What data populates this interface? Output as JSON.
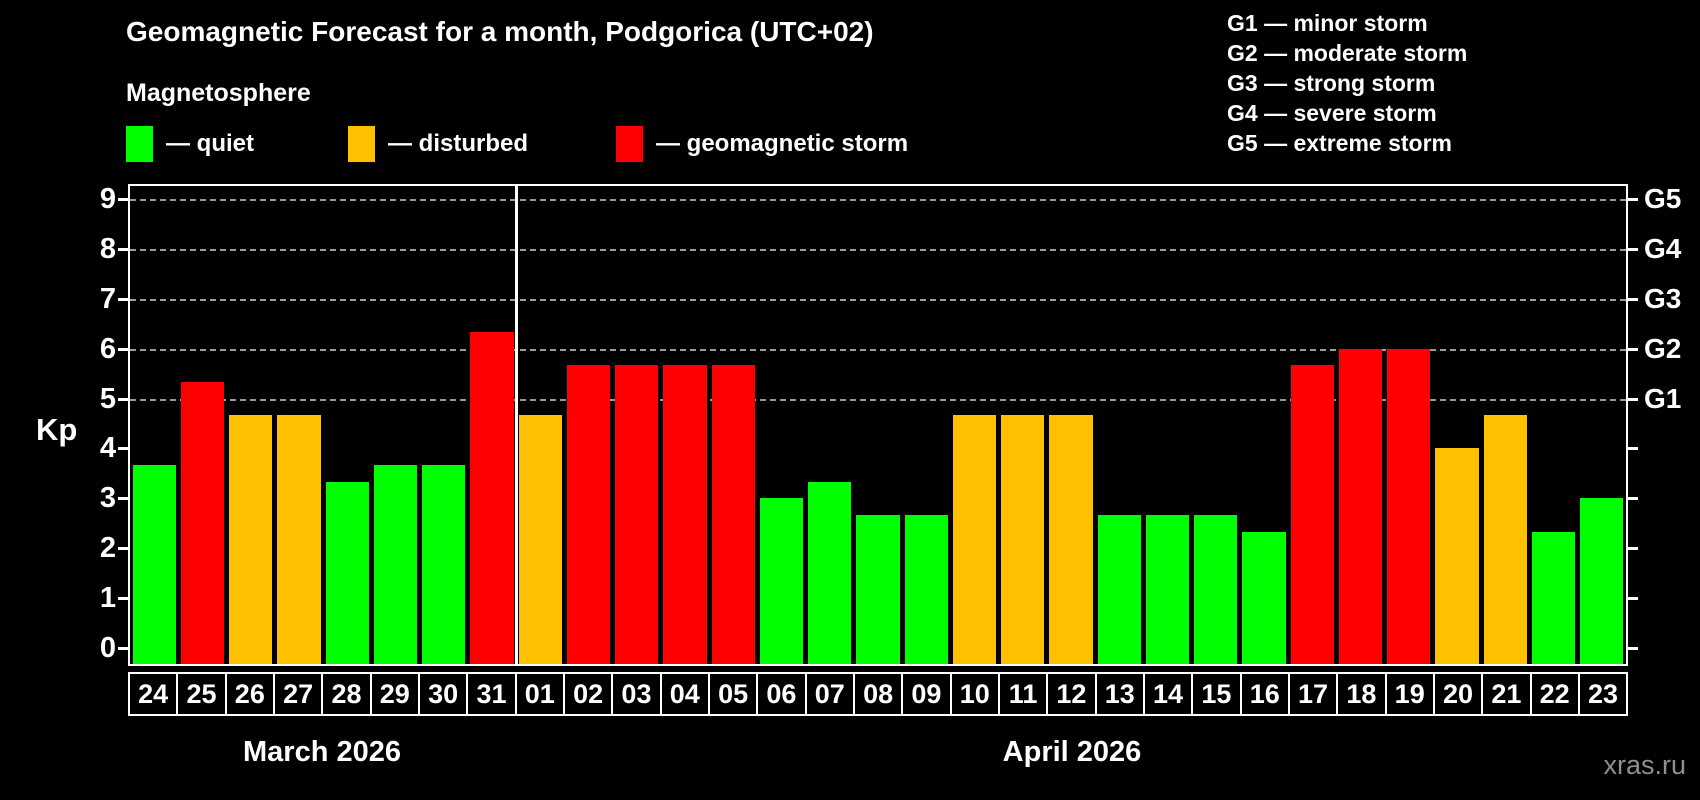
{
  "header": {
    "title": "Geomagnetic Forecast for a month, Podgorica (UTC+02)",
    "subtitle": "Magnetosphere",
    "legend": [
      {
        "key": "quiet",
        "label": "— quiet"
      },
      {
        "key": "disturbed",
        "label": "— disturbed"
      },
      {
        "key": "storm",
        "label": "— geomagnetic storm"
      }
    ],
    "g_scale": [
      {
        "text": "G1 — minor storm"
      },
      {
        "text": "G2 — moderate storm"
      },
      {
        "text": "G3 — strong storm"
      },
      {
        "text": "G4 — severe storm"
      },
      {
        "text": "G5 — extreme storm"
      }
    ]
  },
  "chart_data": {
    "type": "bar",
    "title": "Geomagnetic Forecast for a month, Podgorica (UTC+02)",
    "ylabel": "Kp",
    "ylim": [
      0,
      9
    ],
    "yticks_left": [
      "0",
      "1",
      "2",
      "3",
      "4",
      "5",
      "6",
      "7",
      "8",
      "9"
    ],
    "right_axis_labels": [
      {
        "value": 5,
        "label": "G1"
      },
      {
        "value": 6,
        "label": "G2"
      },
      {
        "value": 7,
        "label": "G3"
      },
      {
        "value": 8,
        "label": "G4"
      },
      {
        "value": 9,
        "label": "G5"
      }
    ],
    "gridlines_at": [
      5,
      6,
      7,
      8,
      9
    ],
    "grid_style": "dashed horizontal gray lines at storm levels only",
    "legend_position": "top-left above plot",
    "months": [
      {
        "label": "March 2026",
        "days": 8
      },
      {
        "label": "April 2026",
        "days": 23
      }
    ],
    "status_colors": {
      "quiet": "#00ff00",
      "disturbed": "#ffc000",
      "storm": "#ff0000"
    },
    "bars": [
      {
        "date": "24",
        "kp": 3.67,
        "status": "quiet"
      },
      {
        "date": "25",
        "kp": 5.33,
        "status": "storm"
      },
      {
        "date": "26",
        "kp": 4.67,
        "status": "disturbed"
      },
      {
        "date": "27",
        "kp": 4.67,
        "status": "disturbed"
      },
      {
        "date": "28",
        "kp": 3.33,
        "status": "quiet"
      },
      {
        "date": "29",
        "kp": 3.67,
        "status": "quiet"
      },
      {
        "date": "30",
        "kp": 3.67,
        "status": "quiet"
      },
      {
        "date": "31",
        "kp": 6.33,
        "status": "storm"
      },
      {
        "date": "01",
        "kp": 4.67,
        "status": "disturbed"
      },
      {
        "date": "02",
        "kp": 5.67,
        "status": "storm"
      },
      {
        "date": "03",
        "kp": 5.67,
        "status": "storm"
      },
      {
        "date": "04",
        "kp": 5.67,
        "status": "storm"
      },
      {
        "date": "05",
        "kp": 5.67,
        "status": "storm"
      },
      {
        "date": "06",
        "kp": 3.0,
        "status": "quiet"
      },
      {
        "date": "07",
        "kp": 3.33,
        "status": "quiet"
      },
      {
        "date": "08",
        "kp": 2.67,
        "status": "quiet"
      },
      {
        "date": "09",
        "kp": 2.67,
        "status": "quiet"
      },
      {
        "date": "10",
        "kp": 4.67,
        "status": "disturbed"
      },
      {
        "date": "11",
        "kp": 4.67,
        "status": "disturbed"
      },
      {
        "date": "12",
        "kp": 4.67,
        "status": "disturbed"
      },
      {
        "date": "13",
        "kp": 2.67,
        "status": "quiet"
      },
      {
        "date": "14",
        "kp": 2.67,
        "status": "quiet"
      },
      {
        "date": "15",
        "kp": 2.67,
        "status": "quiet"
      },
      {
        "date": "16",
        "kp": 2.33,
        "status": "quiet"
      },
      {
        "date": "17",
        "kp": 5.67,
        "status": "storm"
      },
      {
        "date": "18",
        "kp": 6.0,
        "status": "storm"
      },
      {
        "date": "19",
        "kp": 6.0,
        "status": "storm"
      },
      {
        "date": "20",
        "kp": 4.0,
        "status": "disturbed"
      },
      {
        "date": "21",
        "kp": 4.67,
        "status": "disturbed"
      },
      {
        "date": "22",
        "kp": 2.33,
        "status": "quiet"
      },
      {
        "date": "23",
        "kp": 3.0,
        "status": "quiet"
      }
    ]
  },
  "footer": {
    "watermark": "xras.ru"
  }
}
